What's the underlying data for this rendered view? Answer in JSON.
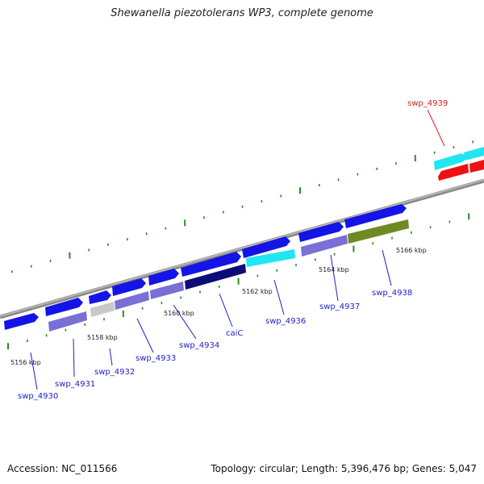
{
  "title": "Shewanella piezotolerans WP3, complete genome",
  "footer": {
    "accession": "Accession: NC_011566",
    "stats": "Topology: circular; Length: 5,396,476 bp; Genes: 5,047"
  },
  "colors": {
    "gene_blue": "#1414e6",
    "gene_cyan": "#1fe6f0",
    "gene_lavender": "#7a6fd6",
    "gene_gray": "#c8c8c8",
    "gene_navy": "#0c0c78",
    "gene_olive": "#6f8a22",
    "gene_red": "#ee1111",
    "backbone": "#8c8c8c",
    "tick": "#2a8a2a",
    "label_blue": "#1f1fc8",
    "label_red": "#e11b1b"
  },
  "kbp_labels": [
    "5156 kbp",
    "5158 kbp",
    "5160 kbp",
    "5162 kbp",
    "5164 kbp",
    "5166 kbp"
  ],
  "gene_labels": [
    "swp_4930",
    "swp_4931",
    "swp_4932",
    "swp_4933",
    "swp_4934",
    "caiC",
    "swp_4936",
    "swp_4937",
    "swp_4938",
    "swp_4939"
  ]
}
